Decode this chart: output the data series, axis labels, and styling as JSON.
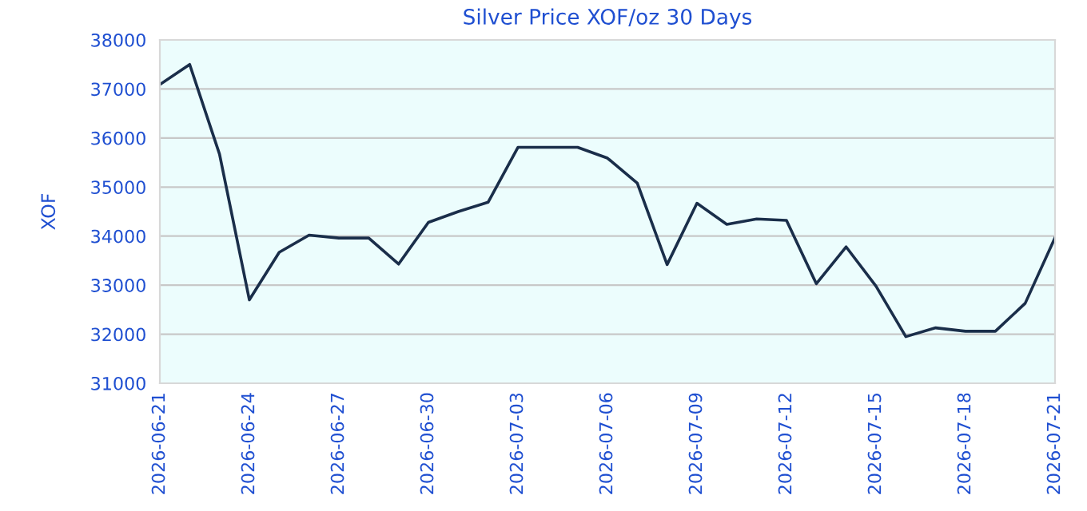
{
  "chart_data": {
    "type": "line",
    "title": "Silver Price XOF/oz 30 Days",
    "ylabel": "XOF",
    "x": [
      "2026-06-21",
      "2026-06-22",
      "2026-06-23",
      "2026-06-24",
      "2026-06-25",
      "2026-06-26",
      "2026-06-27",
      "2026-06-28",
      "2026-06-29",
      "2026-06-30",
      "2026-07-01",
      "2026-07-02",
      "2026-07-03",
      "2026-07-04",
      "2026-07-05",
      "2026-07-06",
      "2026-07-07",
      "2026-07-08",
      "2026-07-09",
      "2026-07-10",
      "2026-07-11",
      "2026-07-12",
      "2026-07-13",
      "2026-07-14",
      "2026-07-15",
      "2026-07-16",
      "2026-07-17",
      "2026-07-18",
      "2026-07-19",
      "2026-07-20",
      "2026-07-21"
    ],
    "series": [
      {
        "color": "#1a2e4a",
        "values": [
          37090,
          37500,
          35670,
          32700,
          33670,
          34020,
          33960,
          33960,
          33430,
          34280,
          34500,
          34690,
          35810,
          35810,
          35810,
          35590,
          35080,
          33420,
          34670,
          34240,
          34350,
          34320,
          33030,
          33780,
          32980,
          31950,
          32130,
          32060,
          32060,
          32630,
          33970
        ]
      }
    ],
    "xlim": [
      "2026-06-21",
      "2026-07-21"
    ],
    "xticks": [
      "2026-06-21",
      "2026-06-24",
      "2026-06-27",
      "2026-06-30",
      "2026-07-03",
      "2026-07-06",
      "2026-07-09",
      "2026-07-12",
      "2026-07-15",
      "2026-07-18",
      "2026-07-21"
    ],
    "ylim": [
      31000,
      38000
    ],
    "yticks": [
      31000,
      32000,
      33000,
      34000,
      35000,
      36000,
      37000,
      38000
    ],
    "grid": "y",
    "marker": "none",
    "line_style": "solid"
  }
}
